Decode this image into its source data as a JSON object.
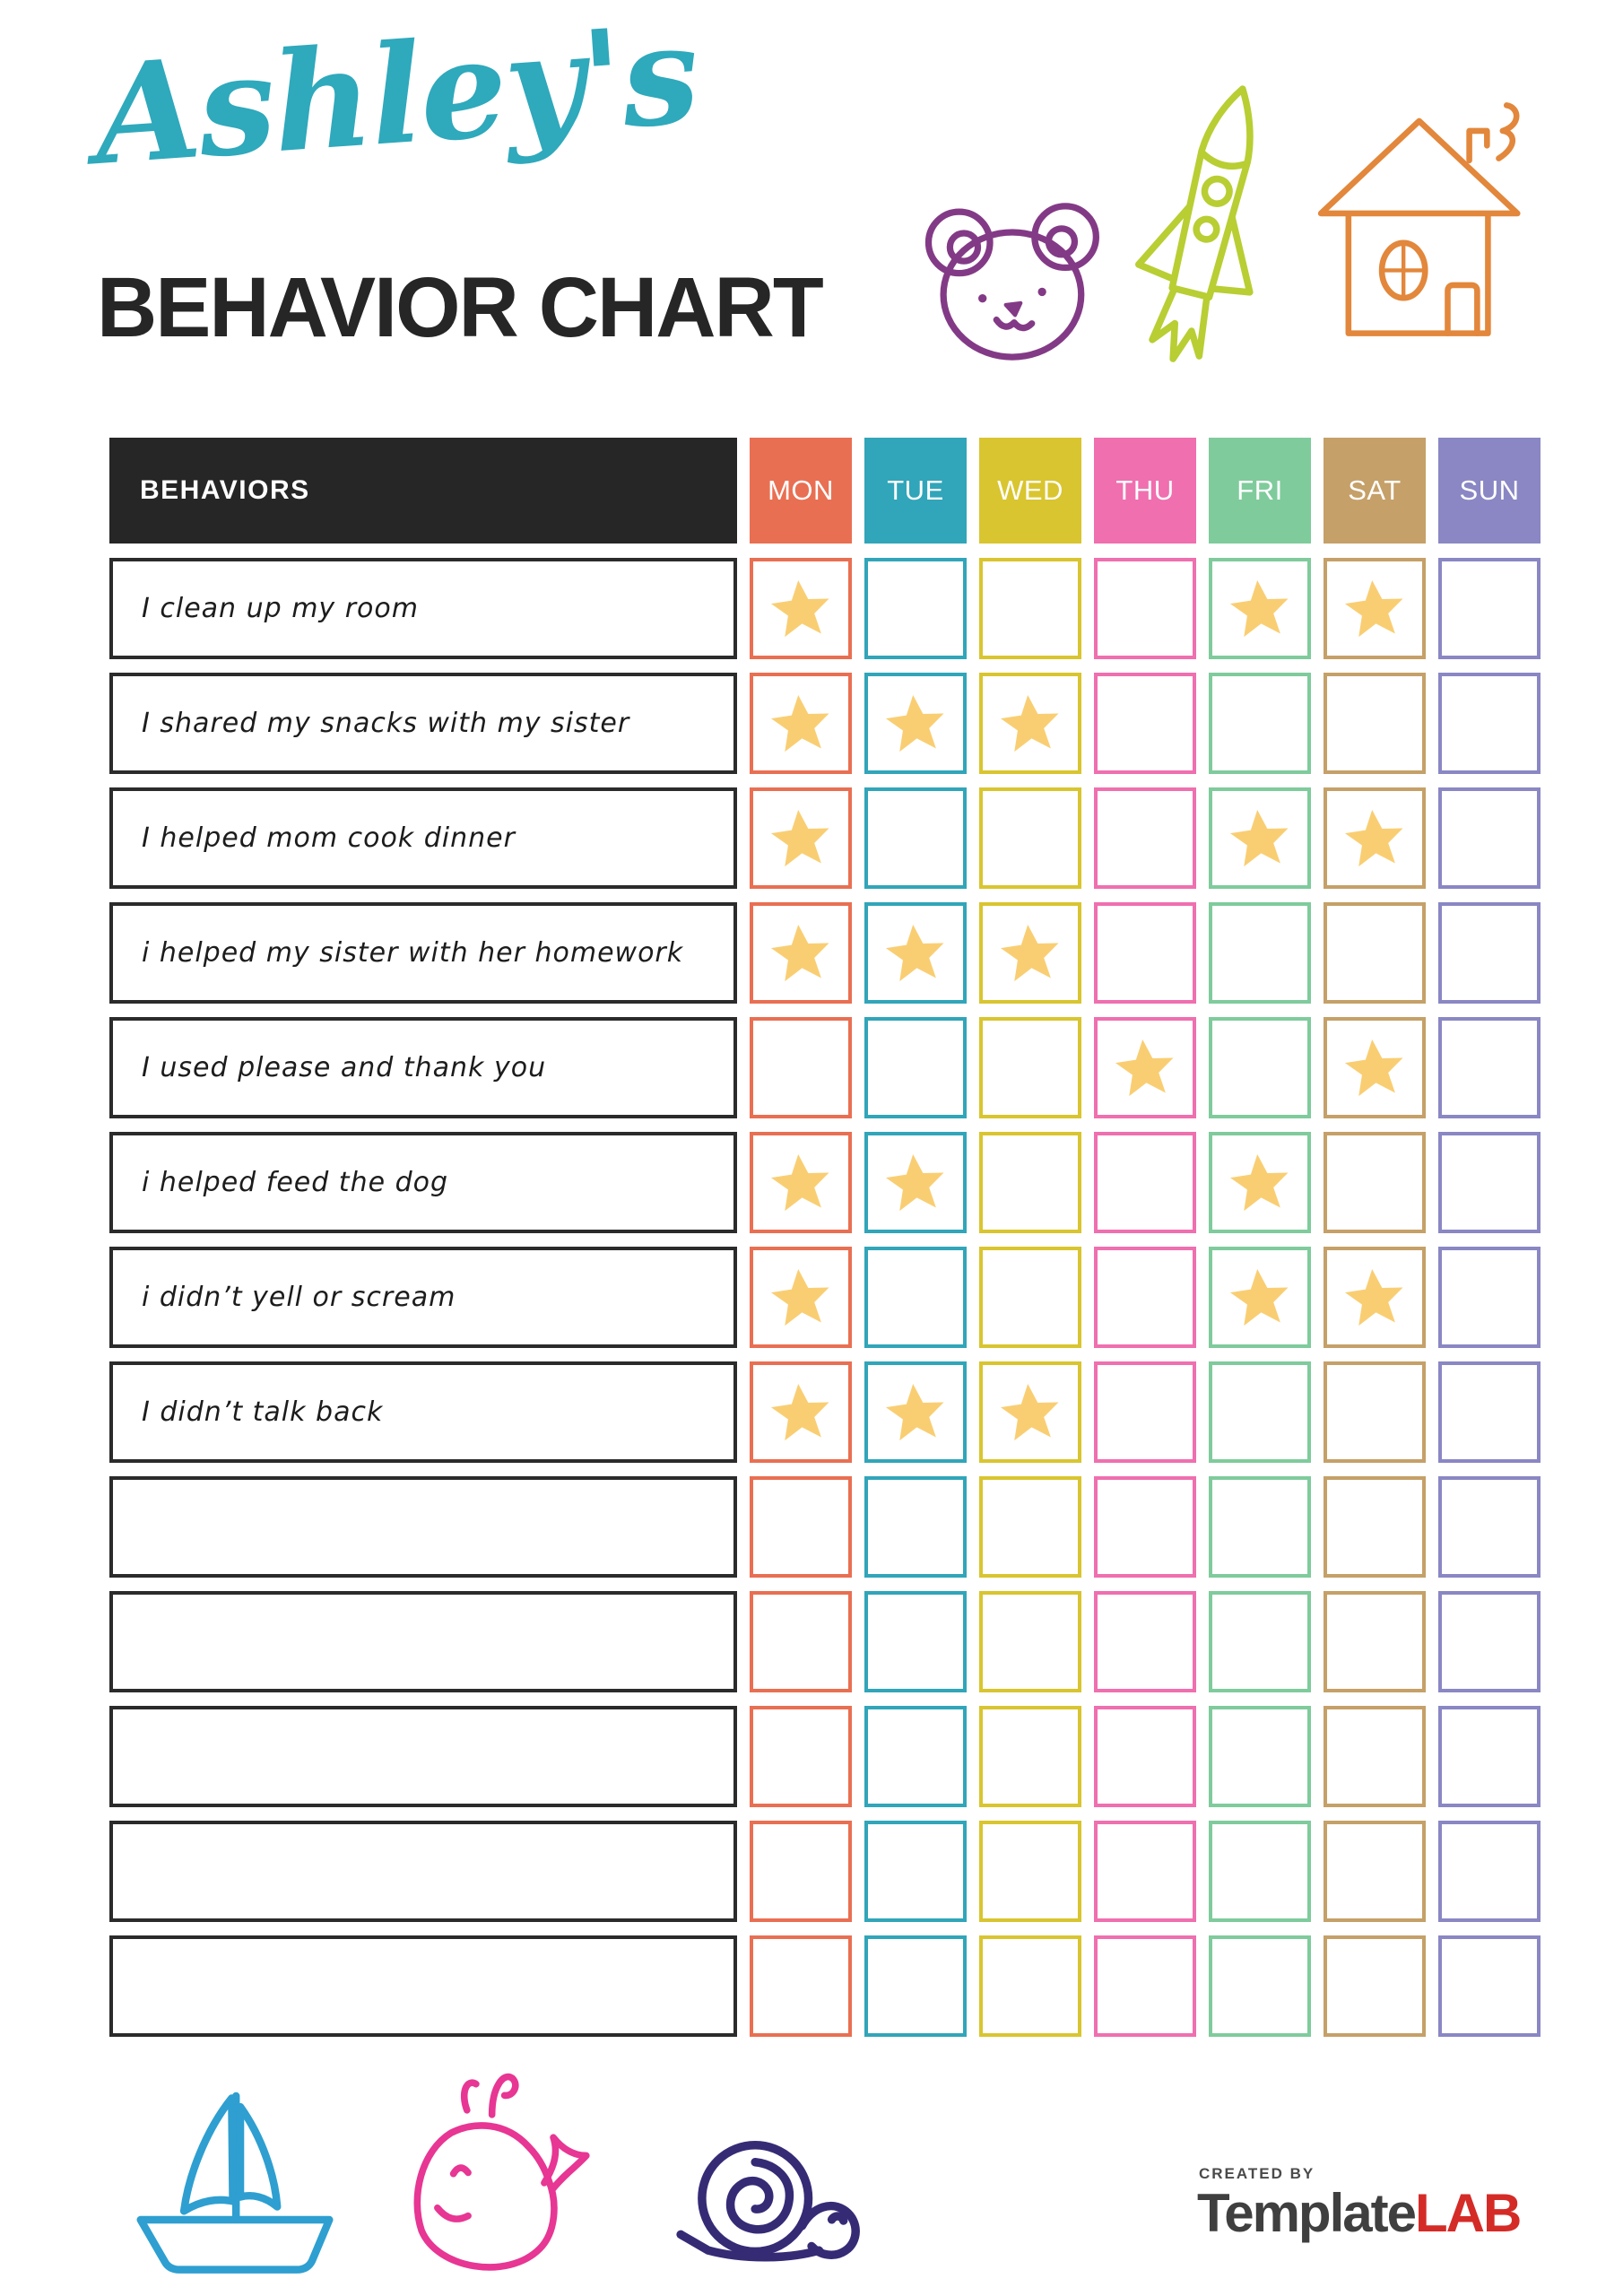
{
  "header": {
    "script_title": "Ashley's",
    "main_title": "BEHAVIOR CHART",
    "script_title_color": "#2FA9BC",
    "main_title_color": "#262626"
  },
  "table": {
    "behaviors_header": "BEHAVIORS",
    "header_bg": "#262626",
    "star_color": "#F9CE73",
    "days": [
      {
        "label": "MON",
        "color": "#E96F52"
      },
      {
        "label": "TUE",
        "color": "#31A5B9"
      },
      {
        "label": "WED",
        "color": "#D9C52F"
      },
      {
        "label": "THU",
        "color": "#EF6FAF"
      },
      {
        "label": "FRI",
        "color": "#7FCB9C"
      },
      {
        "label": "SAT",
        "color": "#C5A068"
      },
      {
        "label": "SUN",
        "color": "#8A87C4"
      }
    ],
    "rows": [
      {
        "label": "I clean up my room",
        "stars": [
          1,
          0,
          0,
          0,
          1,
          1,
          0
        ]
      },
      {
        "label": "I shared my snacks with my sister",
        "stars": [
          1,
          1,
          1,
          0,
          0,
          0,
          0
        ]
      },
      {
        "label": "I helped mom cook dinner",
        "stars": [
          1,
          0,
          0,
          0,
          1,
          1,
          0
        ]
      },
      {
        "label": "i helped my sister with her homework",
        "stars": [
          1,
          1,
          1,
          0,
          0,
          0,
          0
        ]
      },
      {
        "label": "I used please and thank you",
        "stars": [
          0,
          0,
          0,
          1,
          0,
          1,
          0
        ]
      },
      {
        "label": "i helped feed the dog",
        "stars": [
          1,
          1,
          0,
          0,
          1,
          0,
          0
        ]
      },
      {
        "label": "i didn’t yell or scream",
        "stars": [
          1,
          0,
          0,
          0,
          1,
          1,
          0
        ]
      },
      {
        "label": "I didn’t talk back",
        "stars": [
          1,
          1,
          1,
          0,
          0,
          0,
          0
        ]
      },
      {
        "label": "",
        "stars": [
          0,
          0,
          0,
          0,
          0,
          0,
          0
        ]
      },
      {
        "label": "",
        "stars": [
          0,
          0,
          0,
          0,
          0,
          0,
          0
        ]
      },
      {
        "label": "",
        "stars": [
          0,
          0,
          0,
          0,
          0,
          0,
          0
        ]
      },
      {
        "label": "",
        "stars": [
          0,
          0,
          0,
          0,
          0,
          0,
          0
        ]
      },
      {
        "label": "",
        "stars": [
          0,
          0,
          0,
          0,
          0,
          0,
          0
        ]
      }
    ]
  },
  "doodles": {
    "bear_color": "#833A86",
    "rocket_color": "#B8CE33",
    "house_color": "#E2873B",
    "sailboat_color": "#2E9FD0",
    "whale_color": "#E73693",
    "snail_color": "#352B75"
  },
  "footer": {
    "created_by": "CREATED BY",
    "brand_template": "Template",
    "brand_lab": "LAB",
    "brand_template_color": "#3F3F3F",
    "brand_lab_color": "#D42B27"
  }
}
